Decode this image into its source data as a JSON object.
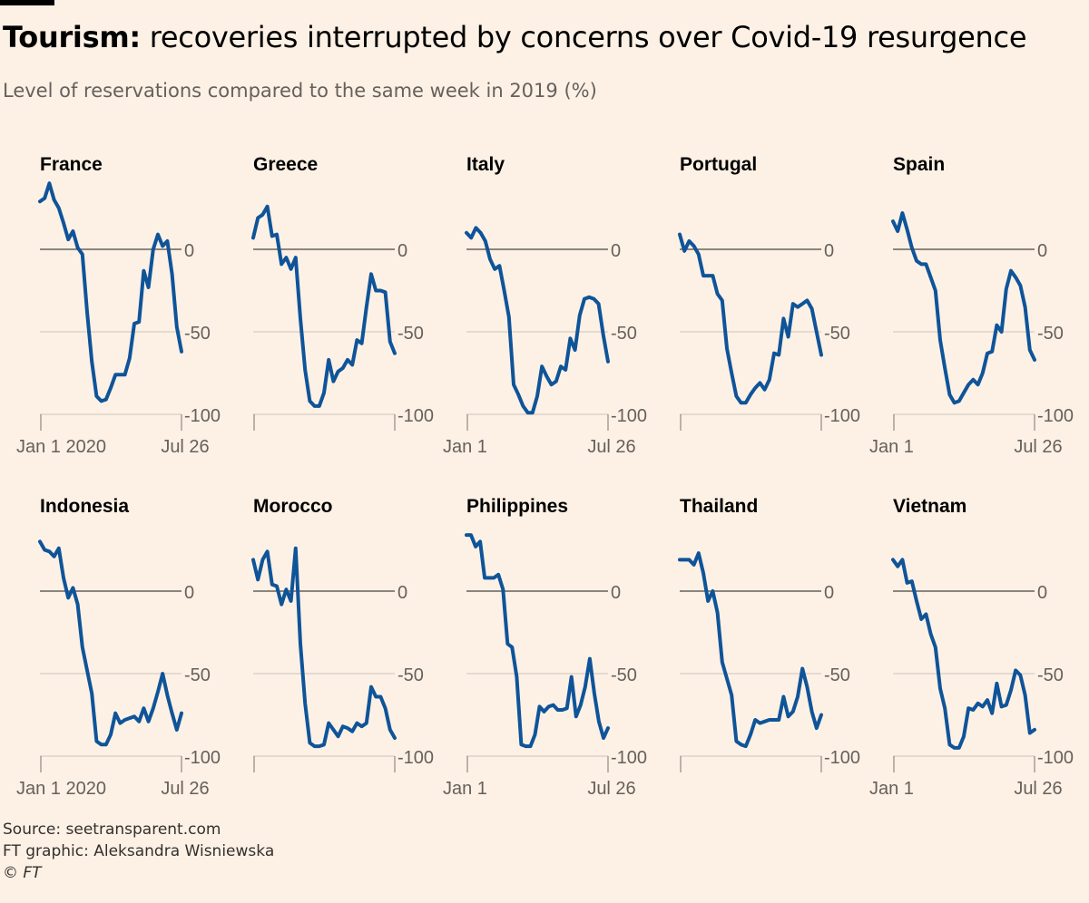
{
  "header": {
    "title_bold": "Tourism:",
    "title_rest": " recoveries interrupted by concerns over Covid-19 resurgence",
    "subtitle": "Level of reservations compared to the same week in 2019 (%)"
  },
  "footer": {
    "source": "Source: seetransparent.com",
    "credit": "FT graphic: Aleksandra Wisniewska",
    "copyright": "© FT"
  },
  "colors": {
    "line": "#0f5499",
    "axis": "#33302e",
    "background": "#fdf1e5"
  },
  "chart_data": [
    {
      "type": "line",
      "title": "France",
      "x_start": "Jan 1 2020",
      "x_end": "Jul 26",
      "ylim": [
        -100,
        40
      ],
      "y_ticks": [
        0,
        -50,
        -100
      ],
      "y_tick_labels": [
        "0",
        "-50",
        "-100"
      ],
      "x_tick_labels": [
        "Jan 1 2020",
        "Jul 26"
      ],
      "values": [
        29,
        31,
        40,
        30,
        25,
        16,
        6,
        11,
        1,
        -3,
        -38,
        -68,
        -89,
        -92,
        -91,
        -84,
        -76,
        -76,
        -76,
        -66,
        -45,
        -44,
        -13,
        -23,
        0,
        9,
        2,
        5,
        -15,
        -47,
        -62
      ]
    },
    {
      "type": "line",
      "title": "Greece",
      "x_start": "Jan 1 2020",
      "x_end": "Jul 26",
      "ylim": [
        -100,
        40
      ],
      "y_ticks": [
        0,
        -50,
        -100
      ],
      "y_tick_labels": [
        "0",
        "-50",
        "-100"
      ],
      "x_tick_labels": [],
      "values": [
        7,
        19,
        21,
        26,
        8,
        9,
        -9,
        -5,
        -12,
        -5,
        -42,
        -73,
        -92,
        -95,
        -95,
        -87,
        -67,
        -80,
        -74,
        -72,
        -67,
        -70,
        -55,
        -57,
        -35,
        -15,
        -25,
        -25,
        -26,
        -56,
        -63
      ]
    },
    {
      "type": "line",
      "title": "Italy",
      "x_start": "Jan 1",
      "x_end": "Jul 26",
      "ylim": [
        -100,
        40
      ],
      "y_ticks": [
        0,
        -50,
        -100
      ],
      "y_tick_labels": [
        "0",
        "-50",
        "-100"
      ],
      "x_tick_labels": [
        "Jan 1",
        "Jul 26"
      ],
      "values": [
        10,
        7,
        13,
        10,
        5,
        -6,
        -12,
        -10,
        -25,
        -41,
        -82,
        -88,
        -95,
        -99,
        -99,
        -89,
        -71,
        -77,
        -82,
        -80,
        -71,
        -73,
        -54,
        -61,
        -40,
        -30,
        -29,
        -30,
        -33,
        -52,
        -68
      ]
    },
    {
      "type": "line",
      "title": "Portugal",
      "x_start": "Jan 1",
      "x_end": "Jul 26",
      "ylim": [
        -100,
        40
      ],
      "y_ticks": [
        0,
        -50,
        -100
      ],
      "y_tick_labels": [
        "0",
        "-50",
        "-100"
      ],
      "x_tick_labels": [],
      "values": [
        9,
        -1,
        5,
        2,
        -3,
        -16,
        -16,
        -16,
        -27,
        -31,
        -60,
        -75,
        -89,
        -93,
        -93,
        -88,
        -84,
        -81,
        -85,
        -79,
        -63,
        -64,
        -42,
        -53,
        -33,
        -35,
        -33,
        -31,
        -36,
        -50,
        -64
      ]
    },
    {
      "type": "line",
      "title": "Spain",
      "x_start": "Jan 1",
      "x_end": "Jul 26",
      "ylim": [
        -100,
        40
      ],
      "y_ticks": [
        0,
        -50,
        -100
      ],
      "y_tick_labels": [
        "0",
        "-50",
        "-100"
      ],
      "x_tick_labels": [
        "Jan 1",
        "Jul 26"
      ],
      "values": [
        17,
        11,
        22,
        12,
        1,
        -7,
        -9,
        -9,
        -17,
        -25,
        -55,
        -72,
        -88,
        -93,
        -92,
        -87,
        -82,
        -79,
        -82,
        -75,
        -63,
        -62,
        -46,
        -50,
        -24,
        -13,
        -17,
        -22,
        -35,
        -61,
        -67
      ]
    },
    {
      "type": "line",
      "title": "Indonesia",
      "x_start": "Jan 1 2020",
      "x_end": "Jul 26",
      "ylim": [
        -100,
        40
      ],
      "y_ticks": [
        0,
        -50,
        -100
      ],
      "y_tick_labels": [
        "0",
        "-50",
        "-100"
      ],
      "x_tick_labels": [
        "Jan 1 2020",
        "Jul 26"
      ],
      "values": [
        30,
        25,
        24,
        21,
        26,
        8,
        -4,
        2,
        -8,
        -34,
        -48,
        -62,
        -91,
        -93,
        -93,
        -87,
        -74,
        -80,
        -78,
        -77,
        -76,
        -79,
        -71,
        -79,
        -71,
        -61,
        -50,
        -63,
        -74,
        -84,
        -74
      ]
    },
    {
      "type": "line",
      "title": "Morocco",
      "x_start": "Jan 1",
      "x_end": "Jul 26",
      "ylim": [
        -100,
        40
      ],
      "y_ticks": [
        0,
        -50,
        -100
      ],
      "y_tick_labels": [
        "0",
        "-50",
        "-100"
      ],
      "x_tick_labels": [],
      "values": [
        19,
        7,
        19,
        24,
        4,
        3,
        -8,
        1,
        -6,
        26,
        -32,
        -68,
        -92,
        -94,
        -94,
        -93,
        -80,
        -84,
        -88,
        -82,
        -83,
        -85,
        -80,
        -82,
        -80,
        -58,
        -64,
        -64,
        -71,
        -84,
        -89
      ]
    },
    {
      "type": "line",
      "title": "Philippines",
      "x_start": "Jan 1",
      "x_end": "Jul 26",
      "ylim": [
        -100,
        40
      ],
      "y_ticks": [
        0,
        -50,
        -100
      ],
      "y_tick_labels": [
        "0",
        "-50",
        "-100"
      ],
      "x_tick_labels": [
        "Jan 1",
        "Jul 26"
      ],
      "values": [
        34,
        34,
        27,
        30,
        8,
        8,
        8,
        10,
        1,
        -32,
        -34,
        -52,
        -93,
        -94,
        -94,
        -87,
        -70,
        -73,
        -70,
        -69,
        -72,
        -72,
        -71,
        -52,
        -76,
        -69,
        -58,
        -41,
        -62,
        -79,
        -89,
        -83
      ]
    },
    {
      "type": "line",
      "title": "Thailand",
      "x_start": "Jan 1",
      "x_end": "Jul 26",
      "ylim": [
        -100,
        40
      ],
      "y_ticks": [
        0,
        -50,
        -100
      ],
      "y_tick_labels": [
        "0",
        "-50",
        "-100"
      ],
      "x_tick_labels": [],
      "values": [
        19,
        19,
        19,
        16,
        23,
        11,
        -6,
        0,
        -13,
        -43,
        -53,
        -63,
        -91,
        -93,
        -94,
        -87,
        -78,
        -80,
        -79,
        -78,
        -78,
        -78,
        -64,
        -76,
        -73,
        -64,
        -47,
        -58,
        -73,
        -83,
        -75
      ]
    },
    {
      "type": "line",
      "title": "Vietnam",
      "x_start": "Jan 1",
      "x_end": "Jul 26",
      "ylim": [
        -100,
        40
      ],
      "y_ticks": [
        0,
        -50,
        -100
      ],
      "y_tick_labels": [
        "0",
        "-50",
        "-100"
      ],
      "x_tick_labels": [
        "Jan 1",
        "Jul 26"
      ],
      "values": [
        19,
        15,
        19,
        5,
        6,
        -6,
        -17,
        -14,
        -26,
        -34,
        -59,
        -71,
        -93,
        -95,
        -95,
        -88,
        -71,
        -72,
        -68,
        -70,
        -66,
        -74,
        -56,
        -70,
        -69,
        -60,
        -48,
        -51,
        -63,
        -86,
        -84
      ]
    }
  ]
}
